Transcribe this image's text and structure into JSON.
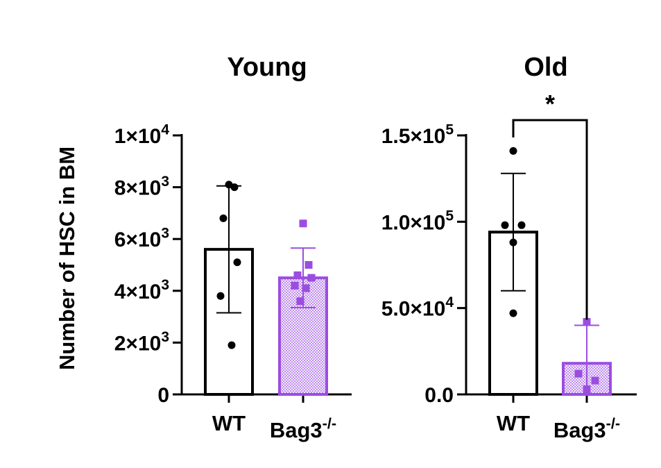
{
  "ylabel": "Number of HSC in BM",
  "colors": {
    "wt": "#000000",
    "bag3": "#9B4DE0"
  },
  "chart_data": [
    {
      "type": "bar",
      "title": "Young",
      "ylim": [
        0,
        10000
      ],
      "ticks": [
        {
          "value": 0,
          "base": "0",
          "exp": ""
        },
        {
          "value": 2000,
          "base": "2×10",
          "exp": "3"
        },
        {
          "value": 4000,
          "base": "4×10",
          "exp": "3"
        },
        {
          "value": 6000,
          "base": "6×10",
          "exp": "3"
        },
        {
          "value": 8000,
          "base": "8×10",
          "exp": "3"
        },
        {
          "value": 10000,
          "base": "1×10",
          "exp": "4"
        }
      ],
      "groups": [
        {
          "label": "WT",
          "label_sup": "",
          "mean": 5600,
          "sd": 2450,
          "points": [
            8100,
            8000,
            6800,
            5100,
            3800,
            1900
          ]
        },
        {
          "label": "Bag3",
          "label_sup": "-/-",
          "mean": 4500,
          "sd": 1150,
          "points": [
            6600,
            5000,
            4600,
            4500,
            4200,
            4100,
            3600
          ]
        }
      ],
      "significance": ""
    },
    {
      "type": "bar",
      "title": "Old",
      "ylim": [
        0,
        150000
      ],
      "ticks": [
        {
          "value": 0,
          "base": "0.0",
          "exp": ""
        },
        {
          "value": 50000,
          "base": "5.0×10",
          "exp": "4"
        },
        {
          "value": 100000,
          "base": "1.0×10",
          "exp": "5"
        },
        {
          "value": 150000,
          "base": "1.5×10",
          "exp": "5"
        }
      ],
      "groups": [
        {
          "label": "WT",
          "label_sup": "",
          "mean": 94000,
          "sd": 34000,
          "points": [
            141000,
            98000,
            98000,
            88000,
            47000
          ]
        },
        {
          "label": "Bag3",
          "label_sup": "-/-",
          "mean": 18000,
          "sd": 22000,
          "points": [
            42000,
            12000,
            8000,
            3000
          ]
        }
      ],
      "significance": "*"
    }
  ]
}
